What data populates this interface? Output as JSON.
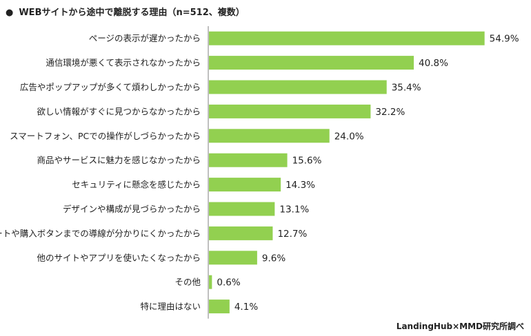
{
  "title": "WEBサイトから途中で離脱する理由（n=512、複数）",
  "source": "LandingHub×MMD研究所調べ",
  "colors": {
    "bar": "#92d050",
    "axis": "#7f7f7f",
    "text": "#222222"
  },
  "chart_data": {
    "type": "bar",
    "orientation": "horizontal",
    "categories": [
      "ページの表示が遅かったから",
      "通信環境が悪くて表示されなかったから",
      "広告やポップアップが多くて煩わしかったから",
      "欲しい情報がすぐに見つからなかったから",
      "スマートフォン、PCでの操作がしづらかったから",
      "商品やサービスに魅力を感じなかったから",
      "セキュリティに懸念を感じたから",
      "デザインや構成が見づらかったから",
      "カートや購入ボタンまでの導線が分かりにくかったから",
      "他のサイトやアプリを使いたくなったから",
      "その他",
      "特に理由はない"
    ],
    "values": [
      54.9,
      40.8,
      35.4,
      32.2,
      24.0,
      15.6,
      14.3,
      13.1,
      12.7,
      9.6,
      0.6,
      4.1
    ],
    "value_labels": [
      "54.9%",
      "40.8%",
      "35.4%",
      "32.2%",
      "24.0%",
      "15.6%",
      "14.3%",
      "13.1%",
      "12.7%",
      "9.6%",
      "0.6%",
      "4.1%"
    ],
    "unit": "%",
    "xlim": [
      0,
      60
    ],
    "grid": false,
    "legend": "none"
  }
}
